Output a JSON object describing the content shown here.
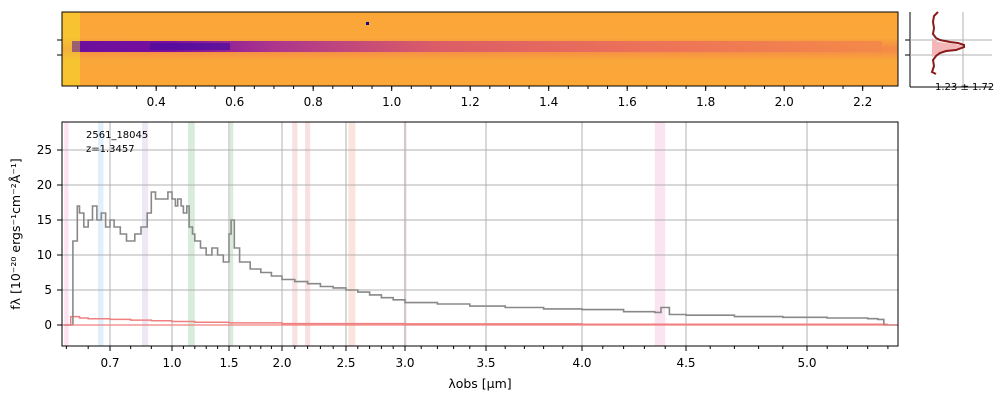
{
  "chart_data": [
    {
      "name": "2d-spectrum",
      "type": "heatmap",
      "x_tick_labels": [
        "0.4",
        "0.6",
        "0.8",
        "1.0",
        "1.2",
        "1.4",
        "1.6",
        "1.8",
        "2.0",
        "2.2"
      ],
      "x_tick_values": [
        0.4,
        0.6,
        0.8,
        1.0,
        1.2,
        1.4,
        1.6,
        1.8,
        2.0,
        2.2
      ],
      "colormap": "plasma",
      "trace": "horizontal bright band across the centre, brightest between 0.3 and 0.65"
    },
    {
      "name": "spatial-profile",
      "type": "line",
      "annotation": "1.23 ± 1.72",
      "profile_color": "#8b1a1a",
      "fill_color": "#f4b6b6"
    },
    {
      "name": "1d-spectrum",
      "type": "line",
      "annotation_id": "2561_18045",
      "annotation_z": "z=1.3457",
      "xlabel": "λobs [μm]",
      "ylabel": "fλ [10⁻²⁰ ergs⁻¹cm⁻²Å⁻¹]",
      "x_tick_labels": [
        "0.7",
        "1.0",
        "1.5",
        "2.0",
        "2.5",
        "3.0",
        "3.5",
        "4.0",
        "4.5",
        "5.0"
      ],
      "x_tick_values": [
        0.7,
        1.0,
        1.5,
        2.0,
        2.5,
        3.0,
        3.5,
        4.0,
        4.5,
        5.0
      ],
      "y_tick_labels": [
        "0",
        "5",
        "10",
        "15",
        "20",
        "25"
      ],
      "y_tick_values": [
        0,
        5,
        10,
        15,
        20,
        25
      ],
      "ylim": [
        -3,
        29
      ],
      "grid": true,
      "series": [
        {
          "color": "#888888",
          "x": [
            0.49,
            0.52,
            0.53,
            0.55,
            0.56,
            0.58,
            0.6,
            0.62,
            0.64,
            0.66,
            0.68,
            0.7,
            0.72,
            0.75,
            0.78,
            0.8,
            0.82,
            0.85,
            0.88,
            0.9,
            0.92,
            0.95,
            0.98,
            1.0,
            1.03,
            1.05,
            1.08,
            1.1,
            1.13,
            1.15,
            1.18,
            1.2,
            1.25,
            1.3,
            1.35,
            1.4,
            1.45,
            1.5,
            1.52,
            1.55,
            1.6,
            1.7,
            1.8,
            1.9,
            2.0,
            2.1,
            2.2,
            2.3,
            2.4,
            2.5,
            2.6,
            2.7,
            2.8,
            2.9,
            3.0,
            3.2,
            3.4,
            3.6,
            3.8,
            4.0,
            4.2,
            4.35,
            4.38,
            4.42,
            4.5,
            4.7,
            4.9,
            5.1,
            5.3,
            5.35,
            5.38,
            5.45
          ],
          "y": [
            0,
            0,
            12,
            17,
            16,
            14,
            15,
            17,
            15,
            16,
            14,
            15,
            14,
            13,
            12,
            12,
            13,
            14,
            16,
            19,
            18,
            18,
            19,
            18,
            17,
            18,
            17,
            16,
            17,
            14,
            13,
            12,
            11,
            10,
            11,
            10,
            9,
            13,
            15,
            11,
            9,
            8,
            7.5,
            7,
            6.5,
            6.2,
            5.9,
            5.5,
            5.3,
            5.0,
            4.7,
            4.3,
            3.9,
            3.6,
            3.2,
            3.0,
            2.7,
            2.5,
            2.3,
            2.2,
            1.9,
            1.8,
            2.5,
            1.5,
            1.4,
            1.2,
            1.1,
            1.0,
            0.9,
            0.8,
            0,
            0
          ]
        },
        {
          "color": "#f08080",
          "x": [
            0.49,
            0.52,
            0.56,
            0.6,
            0.7,
            0.8,
            0.9,
            1.0,
            1.2,
            1.5,
            2.0,
            3.0,
            4.0,
            5.0,
            5.4
          ],
          "y": [
            0.0,
            1.2,
            1.0,
            0.9,
            0.8,
            0.7,
            0.6,
            0.5,
            0.4,
            0.3,
            0.2,
            0.15,
            0.1,
            0.1,
            0.1
          ]
        }
      ],
      "emission_line_bands": [
        {
          "x0": 0.49,
          "x1": 0.51,
          "color": "#fde0ef"
        },
        {
          "x0": 0.645,
          "x1": 0.67,
          "color": "#dbeefa"
        },
        {
          "x0": 0.855,
          "x1": 0.885,
          "color": "#ece4f3"
        },
        {
          "x0": 1.14,
          "x1": 1.2,
          "color": "#d4ead7"
        },
        {
          "x0": 1.51,
          "x1": 1.54,
          "color": "#d4ead7"
        },
        {
          "x0": 2.08,
          "x1": 2.12,
          "color": "#f7dede"
        },
        {
          "x0": 2.18,
          "x1": 2.22,
          "color": "#f7dede"
        },
        {
          "x0": 2.52,
          "x1": 2.58,
          "color": "#fbe1d8"
        },
        {
          "x0": 2.99,
          "x1": 3.01,
          "color": "#f4dbe9"
        },
        {
          "x0": 4.35,
          "x1": 4.4,
          "color": "#fbe1ef"
        }
      ]
    }
  ]
}
